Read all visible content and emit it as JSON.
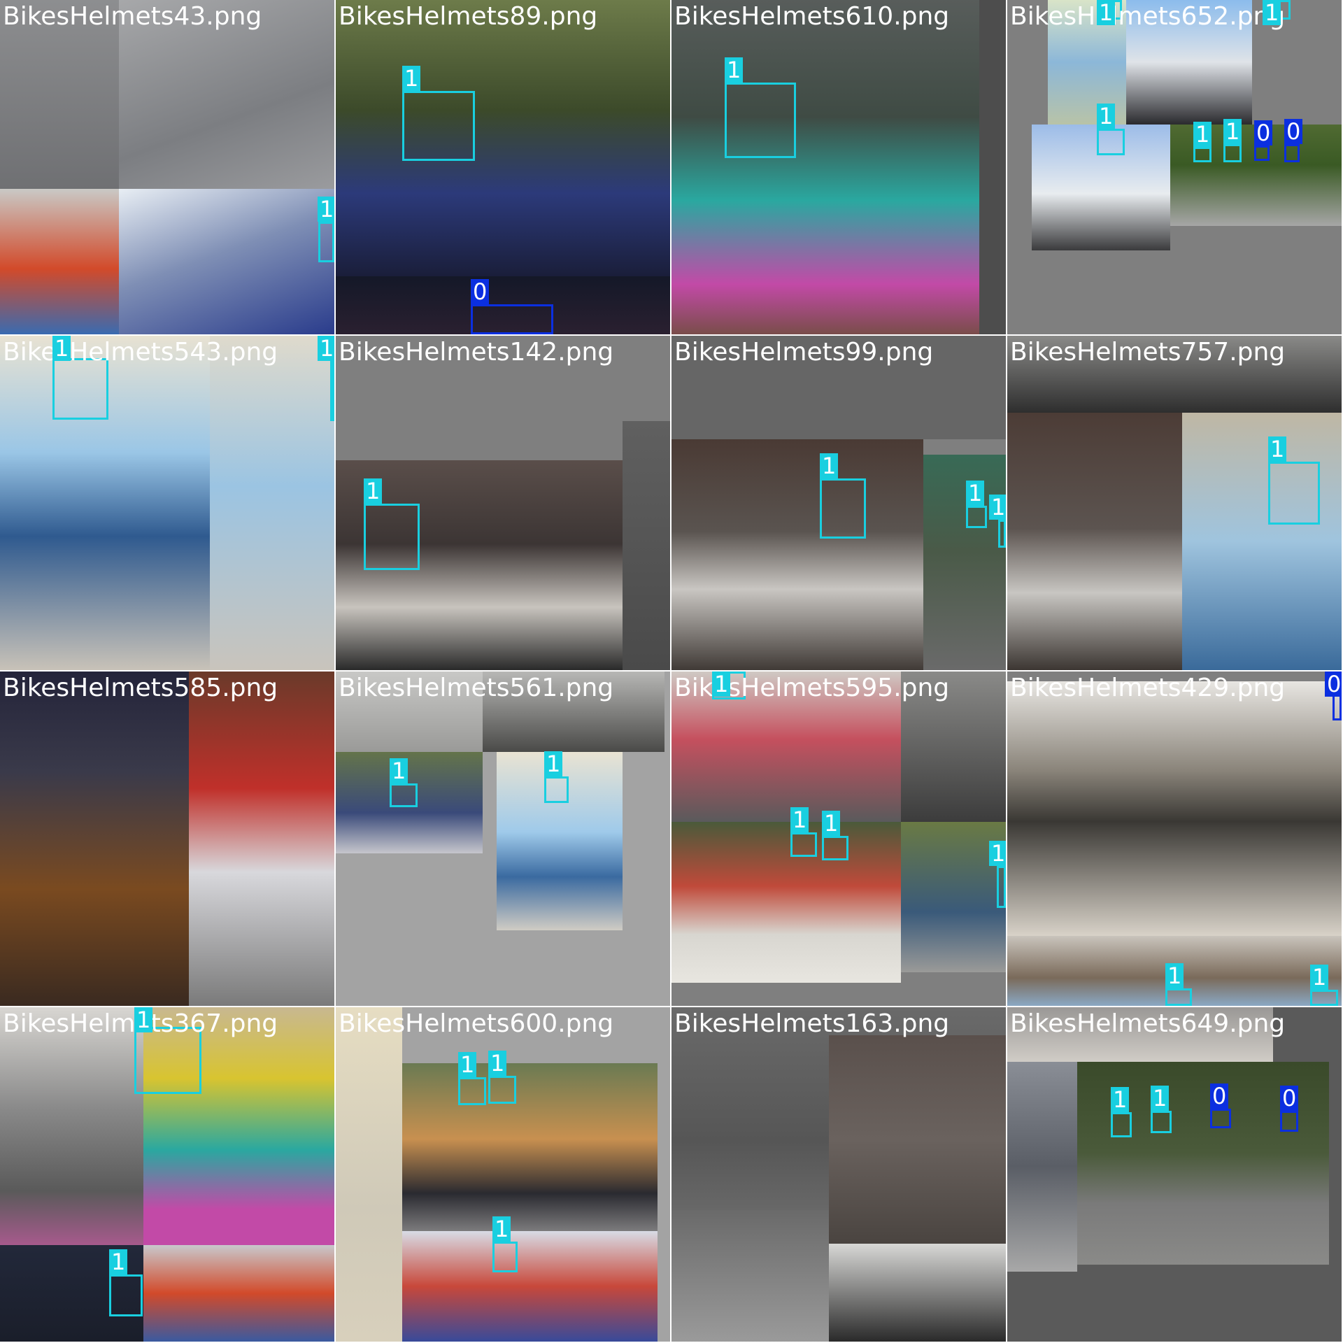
{
  "colors": {
    "class_1": "#19cfe0",
    "class_0": "#0b2fe0",
    "letterbox": "#7f7f7f",
    "label_text": "#ffffff"
  },
  "mosaic": {
    "tiles": [
      {
        "filename": "BikesHelmets43.png",
        "labels": [
          "1"
        ]
      },
      {
        "filename": "BikesHelmets89.png",
        "labels": [
          "1",
          "0"
        ]
      },
      {
        "filename": "BikesHelmets610.png",
        "labels": [
          "1"
        ]
      },
      {
        "filename": "BikesHelmets652.png",
        "labels": [
          "1",
          "1",
          "1",
          "1",
          "1",
          "0",
          "0"
        ]
      },
      {
        "filename": "BikesHelmets543.png",
        "labels": [
          "1",
          "1"
        ]
      },
      {
        "filename": "BikesHelmets142.png",
        "labels": [
          "1"
        ]
      },
      {
        "filename": "BikesHelmets99.png",
        "labels": [
          "1",
          "1",
          "1"
        ]
      },
      {
        "filename": "BikesHelmets757.png",
        "labels": [
          "1"
        ]
      },
      {
        "filename": "BikesHelmets585.png",
        "labels": []
      },
      {
        "filename": "BikesHelmets561.png",
        "labels": [
          "1",
          "1"
        ]
      },
      {
        "filename": "BikesHelmets595.png",
        "labels": [
          "1",
          "1",
          "1",
          "1"
        ]
      },
      {
        "filename": "BikesHelmets429.png",
        "labels": [
          "0",
          "1",
          "1"
        ]
      },
      {
        "filename": "BikesHelmets367.png",
        "labels": [
          "1",
          "1"
        ]
      },
      {
        "filename": "BikesHelmets600.png",
        "labels": [
          "1",
          "1",
          "1"
        ]
      },
      {
        "filename": "BikesHelmets163.png",
        "labels": []
      },
      {
        "filename": "BikesHelmets649.png",
        "labels": [
          "1",
          "1",
          "0",
          "0"
        ]
      }
    ]
  }
}
